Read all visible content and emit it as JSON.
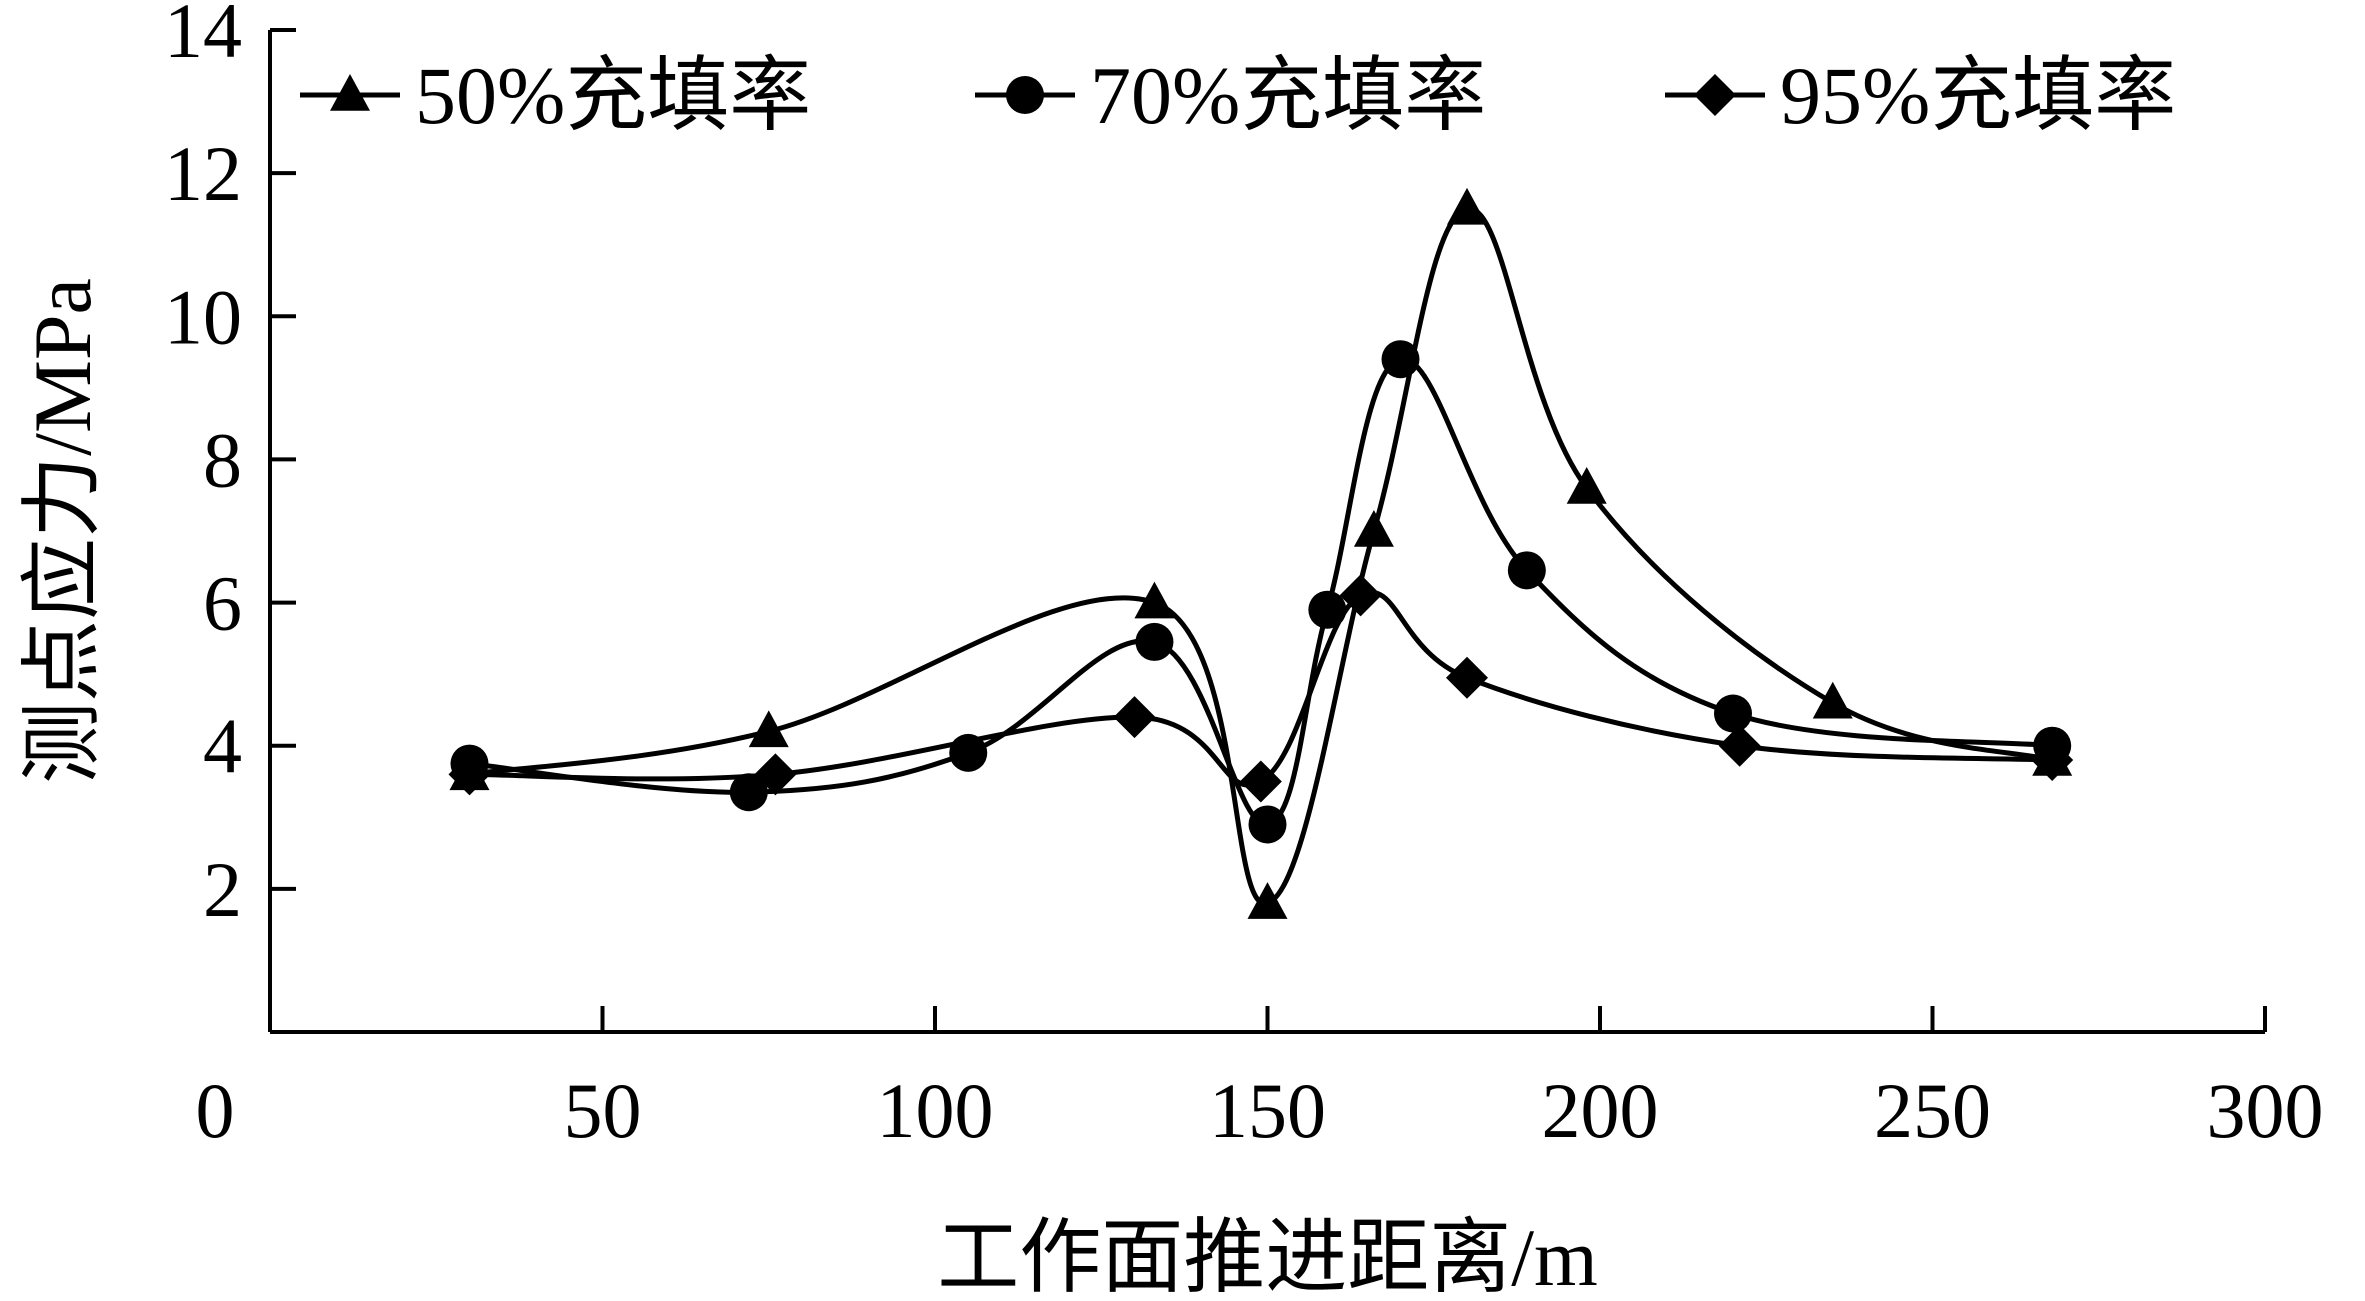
{
  "chart_data": {
    "type": "line",
    "xlabel": "工作面推进距离/m",
    "ylabel": "测点应力/MPa",
    "xlim": [
      0,
      300
    ],
    "ylim": [
      0,
      14
    ],
    "x_ticks": [
      0,
      50,
      100,
      150,
      200,
      250,
      300
    ],
    "y_ticks": [
      2,
      4,
      6,
      8,
      10,
      12,
      14
    ],
    "grid": false,
    "legend_position": "top",
    "series": [
      {
        "name": "50%充填率",
        "marker": "triangle",
        "color": "#000000",
        "points": [
          [
            30,
            3.6
          ],
          [
            75,
            4.2
          ],
          [
            133,
            6.0
          ],
          [
            150,
            1.8
          ],
          [
            166,
            7.0
          ],
          [
            180,
            11.5
          ],
          [
            198,
            7.6
          ],
          [
            235,
            4.6
          ],
          [
            268,
            3.8
          ]
        ]
      },
      {
        "name": "70%充填率",
        "marker": "circle",
        "color": "#000000",
        "points": [
          [
            30,
            3.75
          ],
          [
            72,
            3.35
          ],
          [
            105,
            3.9
          ],
          [
            133,
            5.45
          ],
          [
            150,
            2.9
          ],
          [
            159,
            5.9
          ],
          [
            170,
            9.4
          ],
          [
            189,
            6.45
          ],
          [
            220,
            4.45
          ],
          [
            268,
            4.0
          ]
        ]
      },
      {
        "name": "95%充填率",
        "marker": "diamond",
        "color": "#000000",
        "points": [
          [
            30,
            3.6
          ],
          [
            76,
            3.6
          ],
          [
            130,
            4.4
          ],
          [
            149,
            3.5
          ],
          [
            164,
            6.1
          ],
          [
            180,
            4.95
          ],
          [
            221,
            4.0
          ],
          [
            268,
            3.8
          ]
        ]
      }
    ]
  }
}
